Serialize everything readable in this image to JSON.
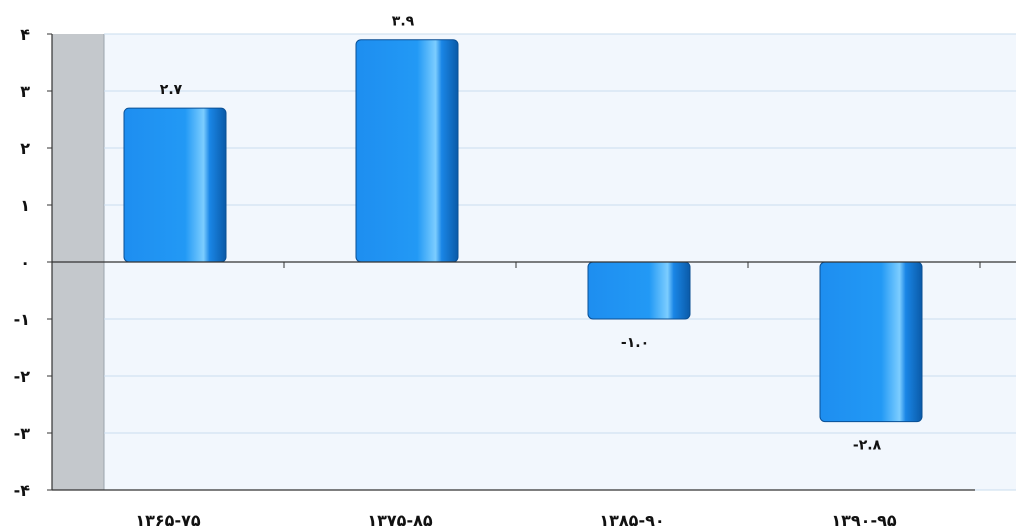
{
  "chart_data": {
    "type": "bar",
    "title": "",
    "xlabel": "",
    "ylabel": "",
    "categories": [
      "۱۳۶۵-۷۵",
      "۱۳۷۵-۸۵",
      "۱۳۸۵-۹۰",
      "۱۳۹۰-۹۵"
    ],
    "values": [
      2.7,
      3.9,
      -1.0,
      -2.8
    ],
    "value_labels": [
      "۲.۷",
      "۳.۹",
      "-۱.۰",
      "-۲.۸"
    ],
    "ylim": [
      -4,
      4
    ],
    "yticks": [
      4,
      3,
      2,
      1,
      0,
      -1,
      -2,
      -3,
      -4
    ],
    "ytick_labels": [
      "۴",
      "۳",
      "۲",
      "۱",
      "۰",
      "-۱",
      "-۲",
      "-۳",
      "-۴"
    ],
    "grid": true,
    "legend": "none",
    "colors": {
      "bar": "#1a8ff0",
      "bar_dark": "#0b5fb0",
      "bar_highlight": "#6fc4ff",
      "plot_bg": "#f2f7fd",
      "side_wall": "#c4c8cc",
      "grid": "#c9dcee",
      "axis": "#333333"
    }
  }
}
